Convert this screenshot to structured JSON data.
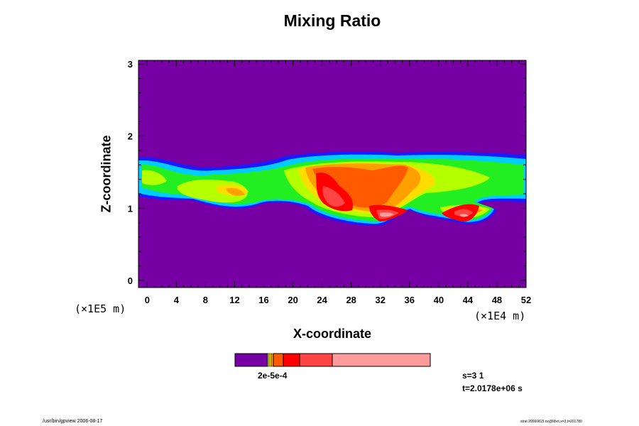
{
  "chart_data": {
    "type": "heatmap",
    "title": "Mixing Ratio",
    "xlabel": "X-coordinate",
    "ylabel": "Z-coordinate",
    "x_unit_label": "(×1E4 m)",
    "y_unit_label": "(×1E5 m)",
    "xlim": [
      -1.2,
      52
    ],
    "ylim": [
      -0.1,
      3.05
    ],
    "x_ticks": [
      "0",
      "4",
      "8",
      "12",
      "16",
      "20",
      "24",
      "28",
      "32",
      "36",
      "40",
      "44",
      "48",
      "52"
    ],
    "y_ticks": [
      "0",
      "1",
      "2",
      "3"
    ],
    "colorbar": {
      "label": "2e-5e-4",
      "colors": [
        "#7700a5",
        "#c8ff00",
        "#ffcc00",
        "#ffa000",
        "#ff5a00",
        "#ff0000",
        "#ff4444",
        "#ff9b9b"
      ]
    },
    "palette": {
      "background": "#7700a5",
      "blue": "#0000ff",
      "lightblue": "#0070ff",
      "cyan": "#00d0ff",
      "aqua": "#00ffb0",
      "green": "#00ff00",
      "lime": "#b4ff00",
      "yellow": "#ffdd00",
      "orange": "#ffa000",
      "darkorange": "#ff5a00",
      "red": "#ff0000",
      "lightred": "#ff4444",
      "pink": "#ff9b9b"
    }
  },
  "annotations": {
    "step": "s=3 1",
    "time": "t=2.0178e+06 s"
  },
  "footer": {
    "left": "/usr/bin/gpview 2006-08-17",
    "right": "strat 20060815.nc@Mxrt,x=3,t=201780"
  }
}
